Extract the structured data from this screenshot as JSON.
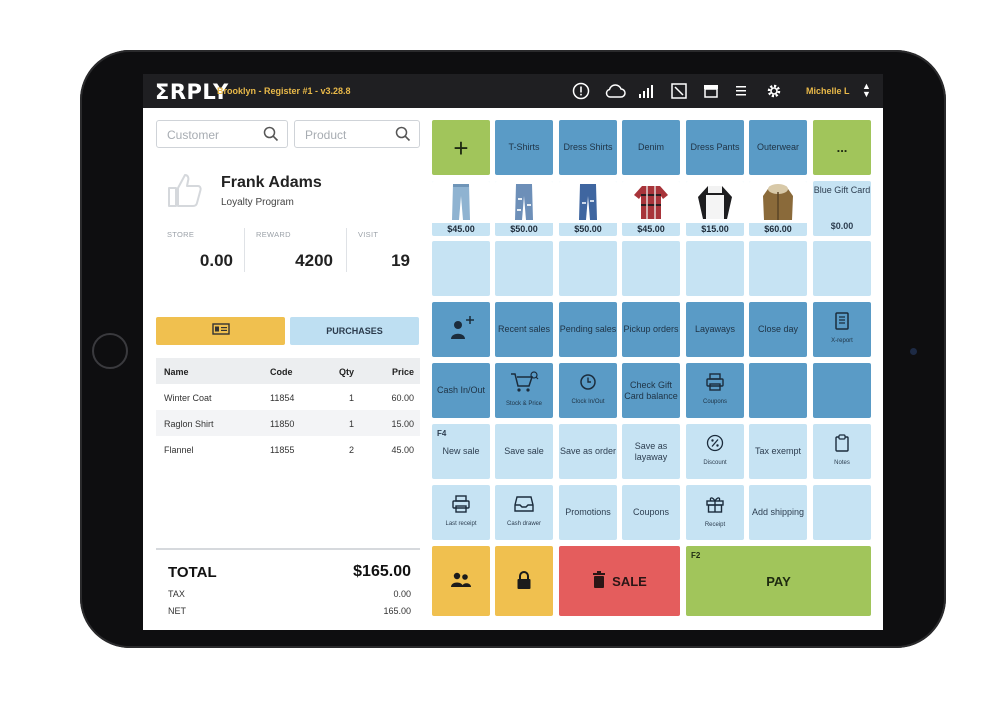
{
  "topbar": {
    "logo": "ΣRPLY",
    "store": "Brooklyn - Register #1 - v3.28.8",
    "user": "Michelle L",
    "icons": [
      "alert-icon",
      "cloud-icon",
      "signal-icon",
      "display-icon",
      "cash-drawer-icon",
      "menu-icon",
      "gear-icon"
    ]
  },
  "search": {
    "customer_placeholder": "Customer",
    "product_placeholder": "Product"
  },
  "customer": {
    "name": "Frank Adams",
    "program": "Loyalty Program",
    "stats": [
      {
        "label": "STORE",
        "value": "0.00"
      },
      {
        "label": "REWARD",
        "value": "4200"
      },
      {
        "label": "VISIT",
        "value": "19"
      }
    ],
    "purchases_label": "PURCHASES"
  },
  "cart": {
    "headers": {
      "name": "Name",
      "code": "Code",
      "qty": "Qty",
      "price": "Price"
    },
    "rows": [
      {
        "name": "Winter Coat",
        "code": "11854",
        "qty": "1",
        "price": "60.00"
      },
      {
        "name": "Raglon Shirt",
        "code": "11850",
        "qty": "1",
        "price": "15.00"
      },
      {
        "name": "Flannel",
        "code": "11855",
        "qty": "2",
        "price": "45.00"
      }
    ]
  },
  "totals": {
    "total_label": "TOTAL",
    "total_value": "$165.00",
    "tax_label": "TAX",
    "tax_value": "0.00",
    "net_label": "NET",
    "net_value": "165.00"
  },
  "categories": {
    "add": "+",
    "tshirts": "T-Shirts",
    "dress_shirts": "Dress Shirts",
    "denim": "Denim",
    "dress_pants": "Dress Pants",
    "outerwear": "Outerwear",
    "more": "..."
  },
  "products": [
    {
      "price": "$45.00"
    },
    {
      "price": "$50.00"
    },
    {
      "price": "$50.00"
    },
    {
      "price": "$45.00"
    },
    {
      "price": "$15.00"
    },
    {
      "price": "$60.00"
    },
    {
      "name": "Blue Gift Card",
      "price": "$0.00"
    }
  ],
  "actions": {
    "recent_sales": "Recent sales",
    "pending_sales": "Pending sales",
    "pickup_orders": "Pickup orders",
    "layaways": "Layaways",
    "close_day": "Close day",
    "x_report": "X-report",
    "cash_in_out": "Cash In/Out",
    "stock_price": "Stock & Price",
    "clock_in_out": "Clock In/Out",
    "check_gift_card": "Check Gift Card balance",
    "coupons_icon": "Coupons",
    "f4": "F4",
    "new_sale": "New sale",
    "save_sale": "Save sale",
    "save_order": "Save as order",
    "save_layaway": "Save as layaway",
    "discount": "Discount",
    "tax_exempt": "Tax exempt",
    "notes": "Notes",
    "last_receipt": "Last receipt",
    "cash_drawer": "Cash drawer",
    "promotions": "Promotions",
    "coupons": "Coupons",
    "receipt": "Receipt",
    "add_shipping": "Add shipping",
    "sale": "SALE",
    "f2": "F2",
    "pay": "PAY"
  },
  "colors": {
    "accent_yellow": "#f0c04f",
    "tile_light": "#c6e3f3",
    "tile_dark": "#5a9bc6",
    "green": "#a1c55b",
    "red": "#e45d5d",
    "topbar": "#1f1f22"
  }
}
